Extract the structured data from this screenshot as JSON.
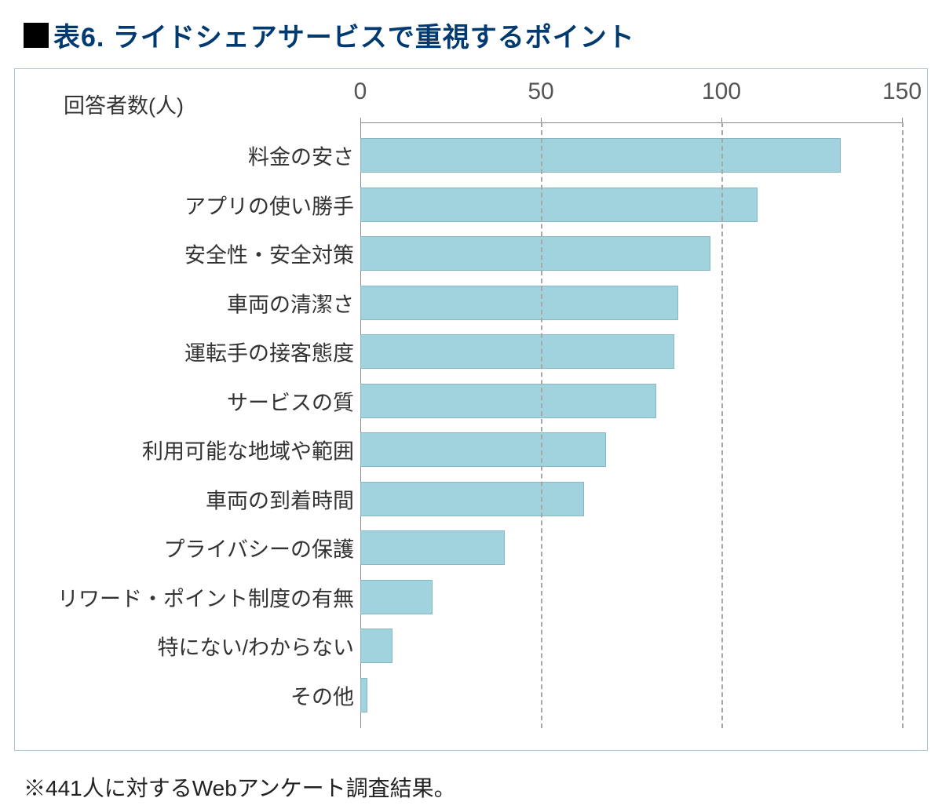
{
  "title": "表6. ライドシェアサービスで重視するポイント",
  "axis_header": "回答者数(人)",
  "footnote": "※441人に対するWebアンケート調査結果。",
  "chart": {
    "type": "bar-horizontal",
    "xlim": [
      0,
      150
    ],
    "xticks": [
      0,
      50,
      100,
      150
    ],
    "bar_color": "#a0d3dd",
    "bar_border": "#86b7c2",
    "grid_color": "#a7a7a7",
    "axis_color": "#888888",
    "frame_border": "#a7c9d6",
    "background_color": "#ffffff",
    "title_color": "#003a70",
    "label_fontsize": 27,
    "tick_fontsize": 30,
    "categories": [
      "料金の安さ",
      "アプリの使い勝手",
      "安全性・安全対策",
      "車両の清潔さ",
      "運転手の接客態度",
      "サービスの質",
      "利用可能な地域や範囲",
      "車両の到着時間",
      "プライバシーの保護",
      "リワード・ポイント制度の有無",
      "特にない/わからない",
      "その他"
    ],
    "values": [
      133,
      110,
      97,
      88,
      87,
      82,
      68,
      62,
      40,
      20,
      9,
      2
    ]
  }
}
